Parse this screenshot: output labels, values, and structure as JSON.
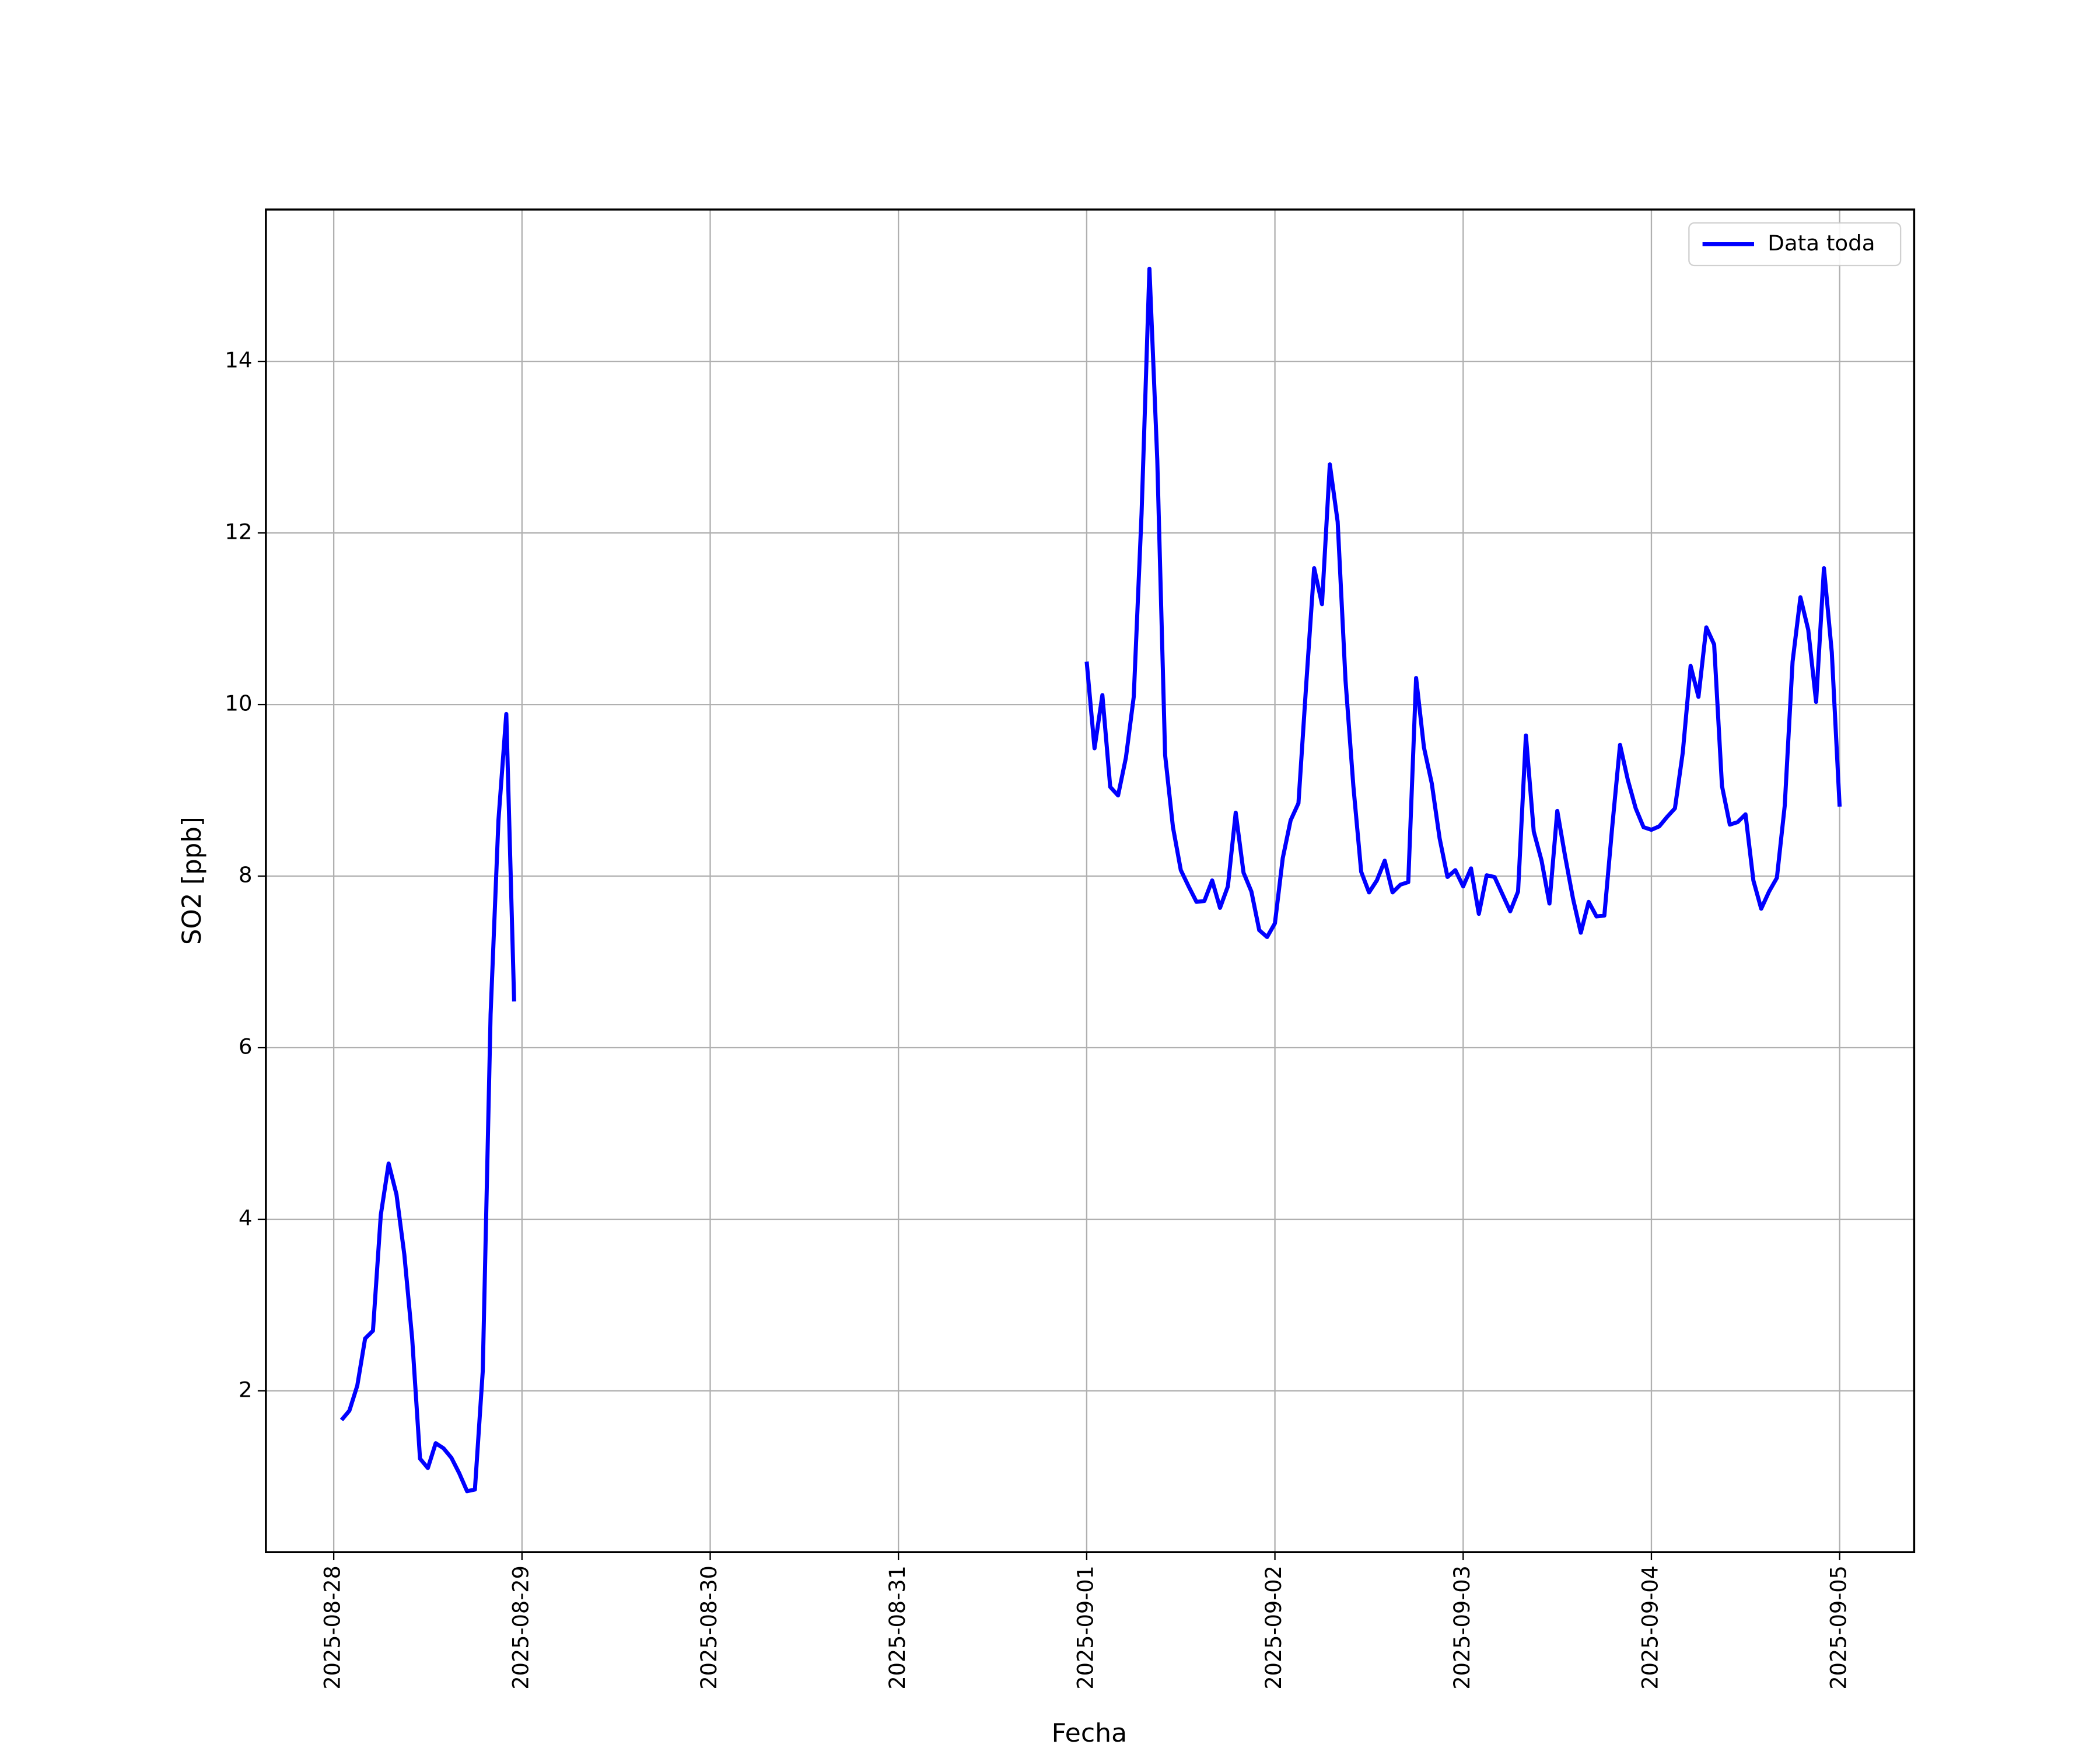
{
  "chart_data": {
    "type": "line",
    "xlabel": "Fecha",
    "ylabel": "SO2 [ppb]",
    "x": [
      "2025-08-28T01:00",
      "2025-08-28T02:00",
      "2025-08-28T03:00",
      "2025-08-28T04:00",
      "2025-08-28T05:00",
      "2025-08-28T06:00",
      "2025-08-28T07:00",
      "2025-08-28T08:00",
      "2025-08-28T09:00",
      "2025-08-28T10:00",
      "2025-08-28T11:00",
      "2025-08-28T12:00",
      "2025-08-28T13:00",
      "2025-08-28T14:00",
      "2025-08-28T15:00",
      "2025-08-28T16:00",
      "2025-08-28T17:00",
      "2025-08-28T18:00",
      "2025-08-28T19:00",
      "2025-08-28T20:00",
      "2025-08-28T21:00",
      "2025-08-28T22:00",
      "2025-08-28T23:00",
      "2025-08-30T00:00",
      "2025-09-01T00:00",
      "2025-09-01T01:00",
      "2025-09-01T02:00",
      "2025-09-01T03:00",
      "2025-09-01T04:00",
      "2025-09-01T05:00",
      "2025-09-01T06:00",
      "2025-09-01T07:00",
      "2025-09-01T08:00",
      "2025-09-01T09:00",
      "2025-09-01T10:00",
      "2025-09-01T11:00",
      "2025-09-01T12:00",
      "2025-09-01T13:00",
      "2025-09-01T14:00",
      "2025-09-01T15:00",
      "2025-09-01T16:00",
      "2025-09-01T17:00",
      "2025-09-01T18:00",
      "2025-09-01T19:00",
      "2025-09-01T20:00",
      "2025-09-01T21:00",
      "2025-09-01T22:00",
      "2025-09-01T23:00",
      "2025-09-02T00:00",
      "2025-09-02T01:00",
      "2025-09-02T02:00",
      "2025-09-02T03:00",
      "2025-09-02T04:00",
      "2025-09-02T05:00",
      "2025-09-02T06:00",
      "2025-09-02T07:00",
      "2025-09-02T08:00",
      "2025-09-02T09:00",
      "2025-09-02T10:00",
      "2025-09-02T11:00",
      "2025-09-02T12:00",
      "2025-09-02T13:00",
      "2025-09-02T14:00",
      "2025-09-02T15:00",
      "2025-09-02T16:00",
      "2025-09-02T17:00",
      "2025-09-02T18:00",
      "2025-09-02T19:00",
      "2025-09-02T20:00",
      "2025-09-02T21:00",
      "2025-09-02T22:00",
      "2025-09-02T23:00",
      "2025-09-03T00:00",
      "2025-09-03T01:00",
      "2025-09-03T02:00",
      "2025-09-03T03:00",
      "2025-09-03T04:00",
      "2025-09-03T05:00",
      "2025-09-03T06:00",
      "2025-09-03T07:00",
      "2025-09-03T08:00",
      "2025-09-03T09:00",
      "2025-09-03T10:00",
      "2025-09-03T11:00",
      "2025-09-03T12:00",
      "2025-09-03T13:00",
      "2025-09-03T14:00",
      "2025-09-03T15:00",
      "2025-09-03T16:00",
      "2025-09-03T17:00",
      "2025-09-03T18:00",
      "2025-09-03T19:00",
      "2025-09-03T20:00",
      "2025-09-03T21:00",
      "2025-09-03T22:00",
      "2025-09-03T23:00",
      "2025-09-04T00:00",
      "2025-09-04T01:00",
      "2025-09-04T02:00",
      "2025-09-04T03:00",
      "2025-09-04T04:00",
      "2025-09-04T05:00",
      "2025-09-04T06:00",
      "2025-09-04T07:00",
      "2025-09-04T08:00",
      "2025-09-04T09:00",
      "2025-09-04T10:00",
      "2025-09-04T11:00",
      "2025-09-04T12:00",
      "2025-09-04T13:00",
      "2025-09-04T14:00",
      "2025-09-04T15:00",
      "2025-09-04T16:00",
      "2025-09-04T17:00",
      "2025-09-04T18:00",
      "2025-09-04T19:00",
      "2025-09-04T20:00",
      "2025-09-04T21:00",
      "2025-09-04T22:00",
      "2025-09-04T23:00",
      "2025-09-05T00:00"
    ],
    "series": [
      {
        "name": "Data toda",
        "color": "#0000ff",
        "values": [
          1.66,
          1.77,
          2.06,
          2.61,
          2.7,
          4.05,
          4.65,
          4.29,
          3.59,
          2.61,
          1.21,
          1.1,
          1.39,
          1.33,
          1.22,
          1.04,
          0.83,
          0.85,
          2.23,
          6.39,
          8.65,
          9.89,
          6.54,
          null,
          10.5,
          9.49,
          10.11,
          9.04,
          8.94,
          9.38,
          10.09,
          12.23,
          15.08,
          12.85,
          9.41,
          8.57,
          8.07,
          7.88,
          7.7,
          7.71,
          7.95,
          7.63,
          7.88,
          8.74,
          8.04,
          7.82,
          7.37,
          7.29,
          7.45,
          8.21,
          8.65,
          8.85,
          10.25,
          11.59,
          11.17,
          12.8,
          12.13,
          10.28,
          9.05,
          8.05,
          7.81,
          7.95,
          8.18,
          7.81,
          7.9,
          7.93,
          10.31,
          9.5,
          9.08,
          8.44,
          7.99,
          8.07,
          7.88,
          8.09,
          7.56,
          8.01,
          7.99,
          7.79,
          7.59,
          7.82,
          9.64,
          8.52,
          8.18,
          7.68,
          8.76,
          8.23,
          7.74,
          7.34,
          7.7,
          7.53,
          7.54,
          8.57,
          9.53,
          9.12,
          8.79,
          8.57,
          8.54,
          8.58,
          8.69,
          8.79,
          9.44,
          10.45,
          10.09,
          10.9,
          10.7,
          9.05,
          8.6,
          8.63,
          8.72,
          7.95,
          7.62,
          7.82,
          7.98,
          8.82,
          10.5,
          11.25,
          10.87,
          10.03,
          11.59,
          10.61,
          8.81
        ]
      }
    ],
    "xlim": [
      "2025-08-27T15:21",
      "2025-09-05T09:30"
    ],
    "xticks": [
      "2025-08-28",
      "2025-08-29",
      "2025-08-30",
      "2025-08-31",
      "2025-09-01",
      "2025-09-02",
      "2025-09-03",
      "2025-09-04",
      "2025-09-05"
    ],
    "ylim": [
      0.12,
      15.77
    ],
    "yticks": [
      2,
      4,
      6,
      8,
      10,
      12,
      14
    ],
    "grid": true,
    "legend": "upper right"
  }
}
